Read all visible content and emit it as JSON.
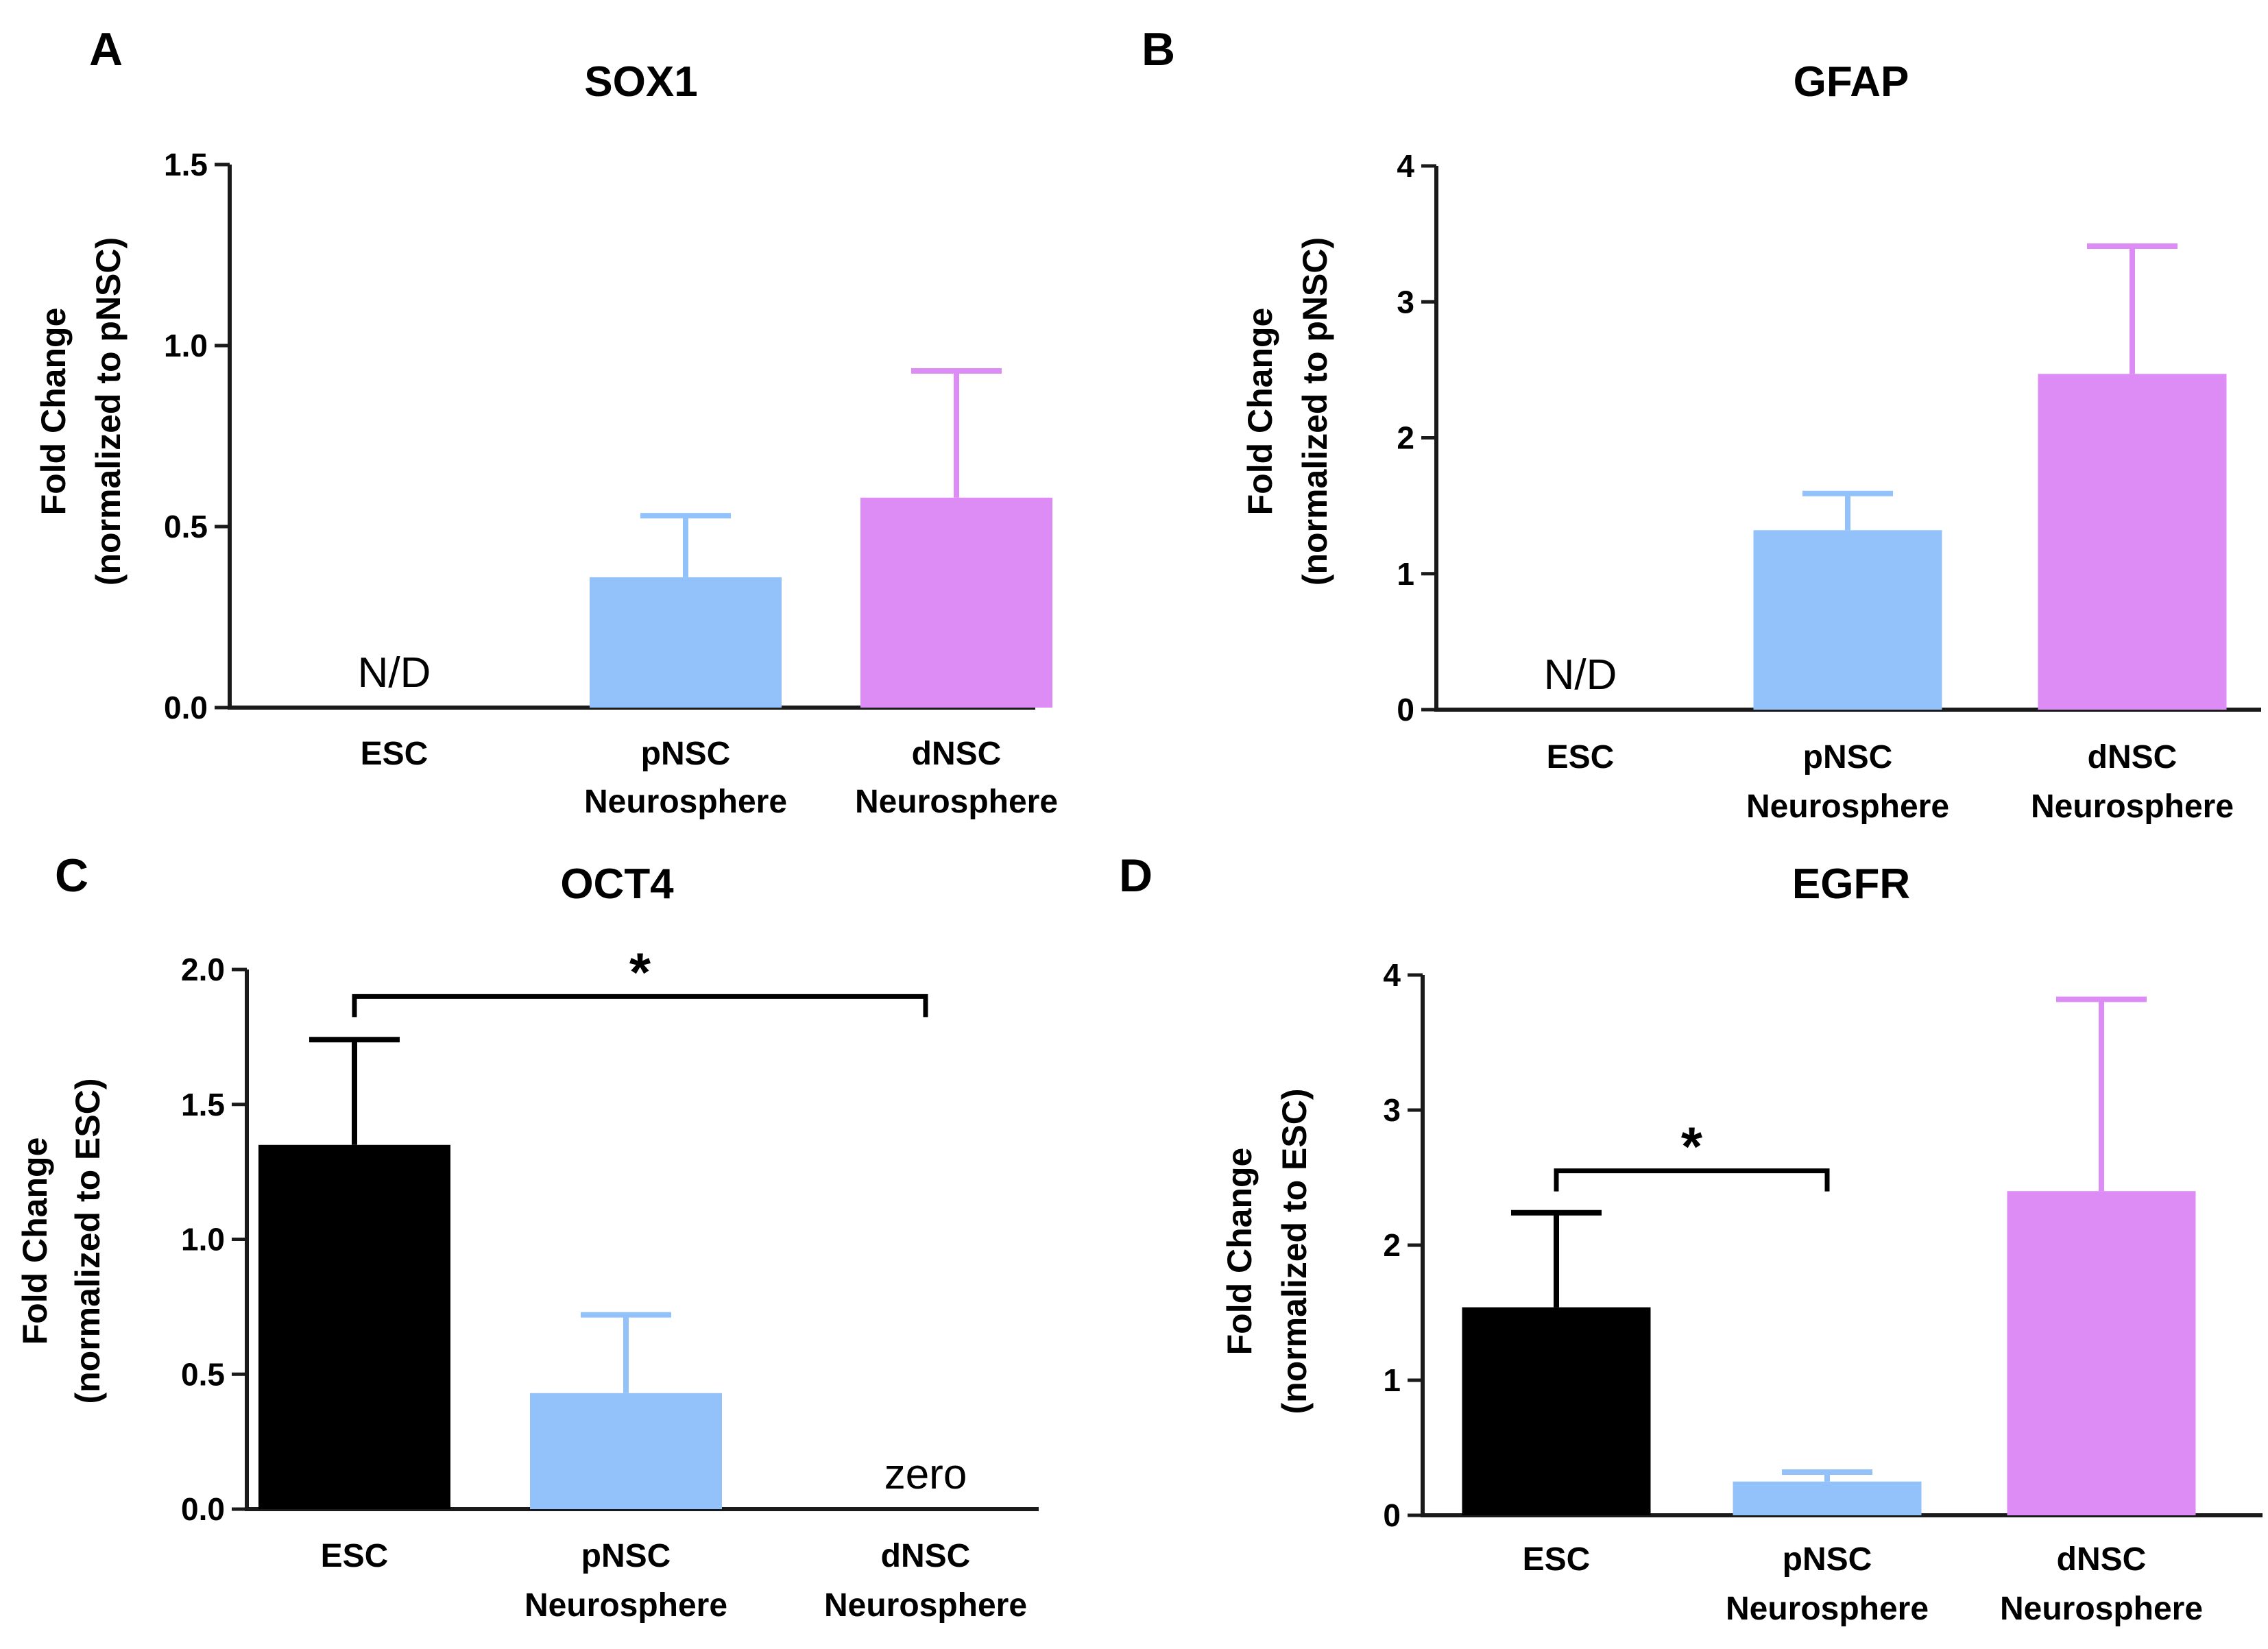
{
  "figure": {
    "palette": {
      "ESC": "#000000",
      "pNSC": "#93c1f9",
      "dNSC": "#de8cf5",
      "axis": "#1a1a1a"
    }
  },
  "chart_data": [
    {
      "panel": "A",
      "type": "bar",
      "title": "SOX1",
      "ylabel_line1": "Fold Change",
      "ylabel_line2": "(normalized to pNSC)",
      "ylim": [
        0,
        1.5
      ],
      "yticks": [
        0.0,
        0.5,
        1.0,
        1.5
      ],
      "ytick_labels": [
        "0.0",
        "0.5",
        "1.0",
        "1.5"
      ],
      "categories": [
        {
          "line1": "ESC",
          "line2": ""
        },
        {
          "line1": "pNSC",
          "line2": "Neurosphere"
        },
        {
          "line1": "dNSC",
          "line2": "Neurosphere"
        }
      ],
      "values": [
        0,
        0.36,
        0.58
      ],
      "errors": [
        0,
        0.17,
        0.35
      ],
      "bar_keys": [
        "ESC",
        "pNSC",
        "dNSC"
      ],
      "annotations": [
        {
          "category": 0,
          "text": "N/D"
        }
      ],
      "significance": []
    },
    {
      "panel": "B",
      "type": "bar",
      "title": "GFAP",
      "ylabel_line1": "Fold Change",
      "ylabel_line2": "(normalized to pNSC)",
      "ylim": [
        0,
        4
      ],
      "yticks": [
        0,
        1,
        2,
        3,
        4
      ],
      "ytick_labels": [
        "0",
        "1",
        "2",
        "3",
        "4"
      ],
      "categories": [
        {
          "line1": "ESC",
          "line2": ""
        },
        {
          "line1": "pNSC",
          "line2": "Neurosphere"
        },
        {
          "line1": "dNSC",
          "line2": "Neurosphere"
        }
      ],
      "values": [
        0,
        1.32,
        2.47
      ],
      "errors": [
        0,
        0.27,
        0.94
      ],
      "bar_keys": [
        "ESC",
        "pNSC",
        "dNSC"
      ],
      "annotations": [
        {
          "category": 0,
          "text": "N/D"
        }
      ],
      "significance": []
    },
    {
      "panel": "C",
      "type": "bar",
      "title": "OCT4",
      "ylabel_line1": "Fold Change",
      "ylabel_line2": "(normalized to ESC)",
      "ylim": [
        0,
        2.0
      ],
      "yticks": [
        0.0,
        0.5,
        1.0,
        1.5,
        2.0
      ],
      "ytick_labels": [
        "0.0",
        "0.5",
        "1.0",
        "1.5",
        "2.0"
      ],
      "categories": [
        {
          "line1": "ESC",
          "line2": ""
        },
        {
          "line1": "pNSC",
          "line2": "Neurosphere"
        },
        {
          "line1": "dNSC",
          "line2": "Neurosphere"
        }
      ],
      "values": [
        1.35,
        0.43,
        0
      ],
      "errors": [
        0.39,
        0.29,
        0
      ],
      "bar_keys": [
        "ESC",
        "pNSC",
        "dNSC"
      ],
      "annotations": [
        {
          "category": 2,
          "text": "zero"
        }
      ],
      "significance": [
        {
          "from": 0,
          "to": 2,
          "level": 1.9,
          "label": "*"
        }
      ]
    },
    {
      "panel": "D",
      "type": "bar",
      "title": "EGFR",
      "ylabel_line1": "Fold Change",
      "ylabel_line2": "(normalized to ESC)",
      "ylim": [
        0,
        4
      ],
      "yticks": [
        0,
        1,
        2,
        3,
        4
      ],
      "ytick_labels": [
        "0",
        "1",
        "2",
        "3",
        "4"
      ],
      "categories": [
        {
          "line1": "ESC",
          "line2": ""
        },
        {
          "line1": "pNSC",
          "line2": "Neurosphere"
        },
        {
          "line1": "dNSC",
          "line2": "Neurosphere"
        }
      ],
      "values": [
        1.54,
        0.25,
        2.4
      ],
      "errors": [
        0.7,
        0.07,
        1.42
      ],
      "bar_keys": [
        "ESC",
        "pNSC",
        "dNSC"
      ],
      "annotations": [],
      "significance": [
        {
          "from": 0,
          "to": 1,
          "level": 2.55,
          "label": "*"
        }
      ]
    }
  ]
}
